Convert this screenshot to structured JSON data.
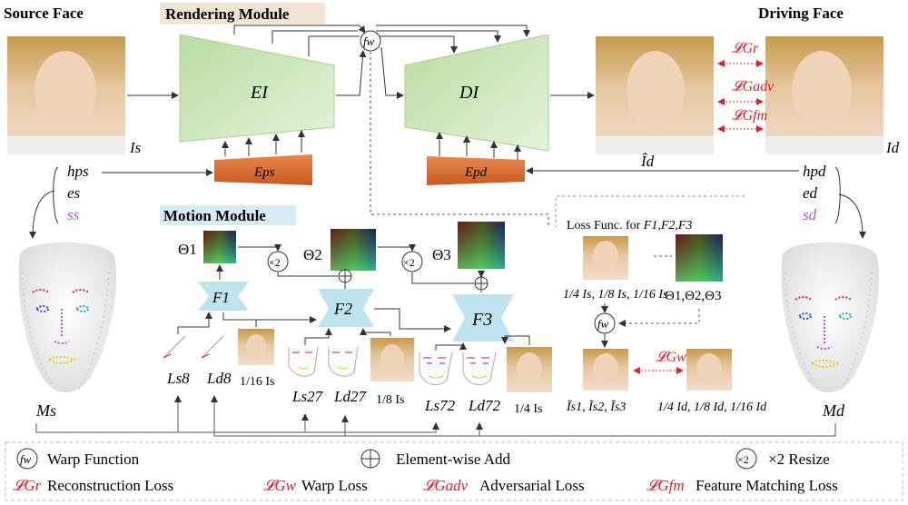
{
  "labels": {
    "source_face": "Source Face",
    "driving_face": "Driving Face",
    "rendering_module": "Rendering Module",
    "motion_module": "Motion Module",
    "loss_func_prefix": "Loss Func. for ",
    "loss_func_targets": "F1,F2,F3"
  },
  "variables": {
    "Is": "Is",
    "Id": "Id",
    "Id_hat": "Îd",
    "hps": "hps",
    "es": "es",
    "ss": "ss",
    "hpd": "hpd",
    "ed": "ed",
    "sd": "sd",
    "EI": "EI",
    "DI": "DI",
    "Eps": "Eps",
    "Epd": "Epd",
    "Ms": "Ms",
    "Md": "Md",
    "theta1": "Θ1",
    "theta2": "Θ2",
    "theta3": "Θ3",
    "F1": "F1",
    "F2": "F2",
    "F3": "F3",
    "fw": "fw",
    "x2": "×2",
    "Ls8": "Ls8",
    "Ld8": "Ld8",
    "Ls27": "Ls27",
    "Ld27": "Ld27",
    "Ls72": "Ls72",
    "Ld72": "Ld72",
    "scale16": "1/16 Is",
    "scale8": "1/8 Is",
    "scale4": "1/4 Is",
    "pyramid_s": "1/4 Is, 1/8 Is, 1/16 Is",
    "pyramid_d": "1/4 Id, 1/8 Id, 1/16 Id",
    "thetas": "Θ1,Θ2,Θ3",
    "warped": "Ĩs1, Ĩs2, Ĩs3"
  },
  "losses": {
    "rec": "𝓛Gr",
    "adv": "𝓛Gadv",
    "fm": "𝓛Gfm",
    "warp": "𝓛Gw"
  },
  "legend": {
    "warp_symbol": "fw",
    "warp_function": "Warp Function",
    "add": "Element-wise Add",
    "resize_symbol": "×2",
    "resize": "×2 Resize",
    "reconstruction": "Reconstruction Loss",
    "warp_loss": "Warp Loss",
    "adversarial": "Adversarial Loss",
    "feature_matching": "Feature Matching Loss"
  },
  "colors": {
    "encoder_green": "#c9e4b6",
    "pose_orange": "#d9692c",
    "flow_blue": "#bfe3ef",
    "loss_red": "#e0202a",
    "style_purple": "#b74fd6",
    "face_skin": "#e8c6a0",
    "hair": "#c79a4a"
  }
}
